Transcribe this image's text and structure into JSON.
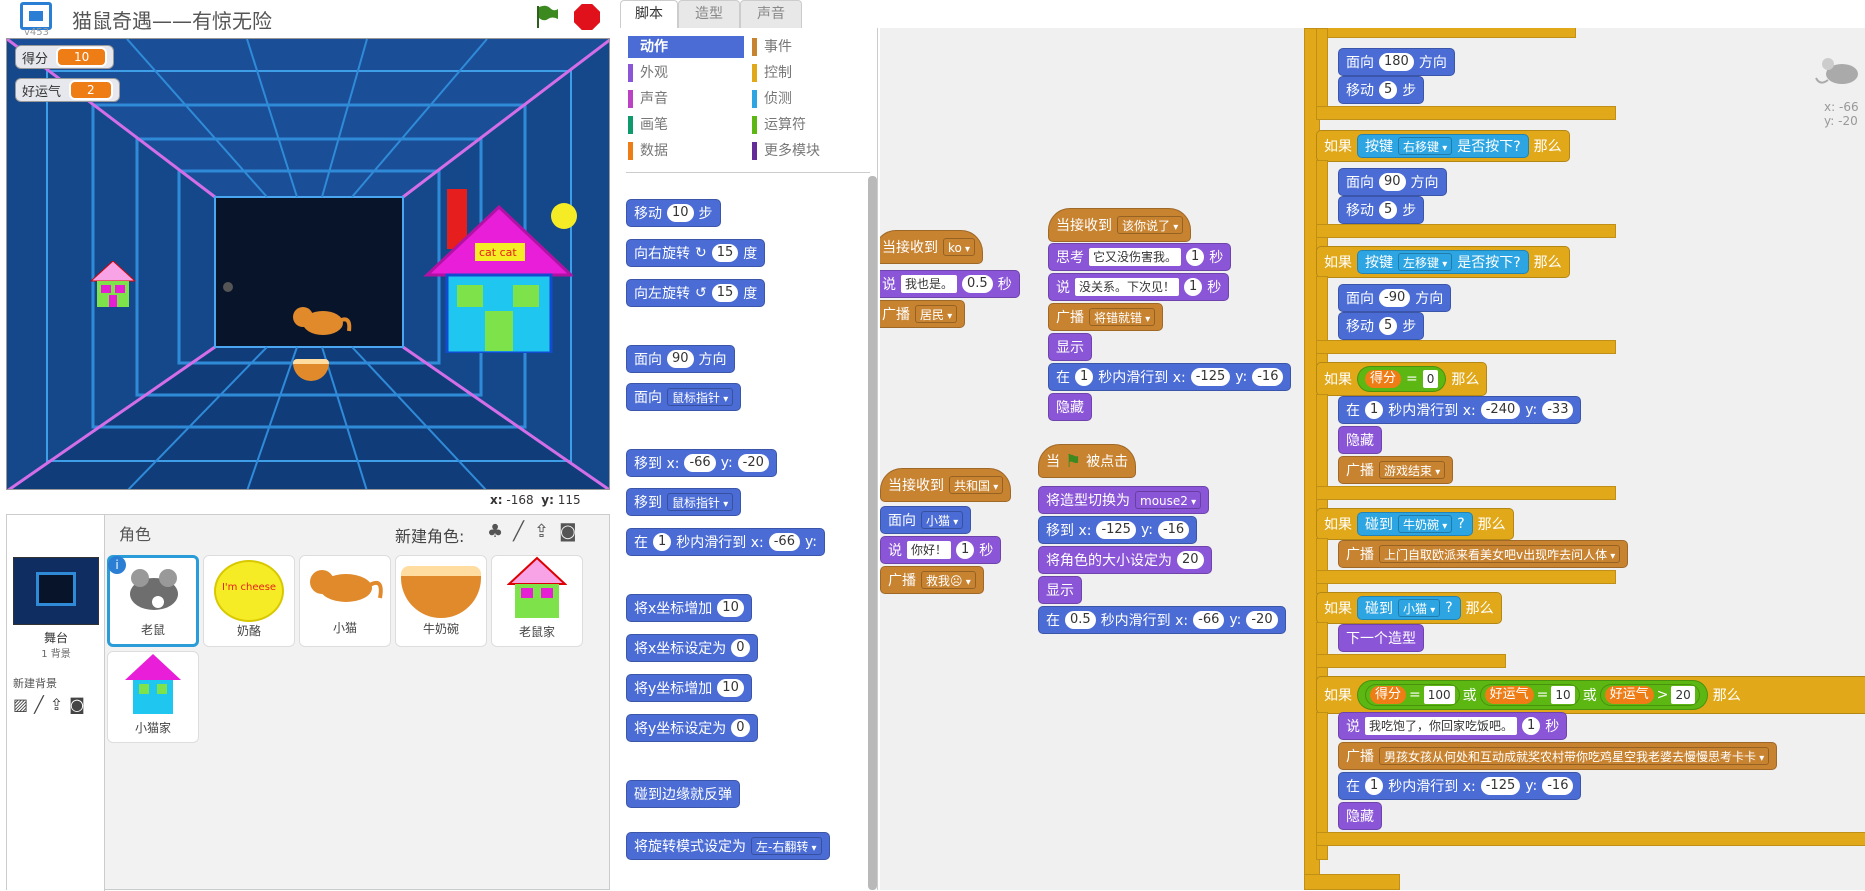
{
  "window": {
    "title": "猫鼠奇遇——有惊无险",
    "version": "v453"
  },
  "monitors": [
    {
      "label": "得分",
      "value": "10"
    },
    {
      "label": "好运气",
      "value": "2"
    }
  ],
  "stage_coords": {
    "x_label": "x:",
    "x": "-168",
    "y_label": "y:",
    "y": "115"
  },
  "sprites_panel": {
    "title": "角色",
    "new_sprite": "新建角色:",
    "stage_label": "舞台",
    "stage_sub": "1 背景",
    "new_backdrop": "新建背景",
    "sprites": [
      "老鼠",
      "奶酪",
      "小猫",
      "牛奶碗",
      "老鼠家",
      "小猫家"
    ]
  },
  "tabs": [
    "脚本",
    "造型",
    "声音"
  ],
  "categories": [
    {
      "name": "动作",
      "color": "#4a6cd4"
    },
    {
      "name": "事件",
      "color": "#c88330"
    },
    {
      "name": "外观",
      "color": "#8a55d7"
    },
    {
      "name": "控制",
      "color": "#e1a91a"
    },
    {
      "name": "声音",
      "color": "#bb42c3"
    },
    {
      "name": "侦测",
      "color": "#2ca5e2"
    },
    {
      "name": "画笔",
      "color": "#0e9a6c"
    },
    {
      "name": "运算符",
      "color": "#5cb712"
    },
    {
      "name": "数据",
      "color": "#ee7d16"
    },
    {
      "name": "更多模块",
      "color": "#632d99"
    }
  ],
  "palette": {
    "move": "移动",
    "move_n": "10",
    "steps": "步",
    "turn_r": "向右旋转",
    "turn_n": "15",
    "deg": "度",
    "turn_l": "向左旋转",
    "point_dir": "面向",
    "dir_val": "90",
    "dir_suffix": "方向",
    "point_to": "面向",
    "mouse": "鼠标指针",
    "goto_xy": "移到 x:",
    "gx": "-66",
    "gy_label": "y:",
    "gy": "-20",
    "goto": "移到",
    "glide": "在",
    "glide_t": "1",
    "glide_mid": "秒内滑行到 x:",
    "glide_x": "-66",
    "glide_y_label": "y:",
    "chx": "将x坐标增加",
    "chx_n": "10",
    "setx": "将x坐标设定为",
    "setx_n": "0",
    "chy": "将y坐标增加",
    "chy_n": "10",
    "sety": "将y坐标设定为",
    "sety_n": "0",
    "bounce": "碰到边缘就反弹",
    "rot": "将旋转模式设定为",
    "rot_v": "左-右翻转"
  },
  "scripts": {
    "s1": {
      "hat": "当接收到",
      "msg": "ko",
      "say": "说",
      "say_v": "我也是。",
      "say_t": "0.5",
      "sec": "秒",
      "bc": "广播",
      "bc_v": "居民"
    },
    "s2": {
      "hat": "当接收到",
      "msg": "共和国",
      "face": "面向",
      "face_v": "小猫",
      "say": "说",
      "say_v": "你好！",
      "say_t": "1",
      "sec": "秒",
      "bc": "广播",
      "bc_v": "救我☹"
    },
    "s3": {
      "hat": "当接收到",
      "msg": "该你说了",
      "think": "思考",
      "think_v": "它又没伤害我。",
      "t1": "1",
      "sec": "秒",
      "say": "说",
      "say_v": "没关系。下次见！",
      "t2": "1",
      "bc": "广播",
      "bc_v": "将错就错",
      "show": "显示",
      "glide": "在",
      "g_t": "1",
      "g_mid": "秒内滑行到 x:",
      "gx": "-125",
      "gy_label": "y:",
      "gy": "-16",
      "hide": "隐藏"
    },
    "s4": {
      "hat": "当",
      "clicked": "被点击",
      "costume": "将造型切换为",
      "costume_v": "mouse2",
      "goto": "移到 x:",
      "gx": "-125",
      "gy_label": "y:",
      "gy": "-16",
      "size": "将角色的大小设定为",
      "size_v": "20",
      "show": "显示",
      "glide": "在",
      "g_t": "0.5",
      "g_mid": "秒内滑行到 x:",
      "g_x": "-66",
      "g_y": "-20"
    },
    "s5": {
      "if": "如果",
      "then": "那么",
      "key": "按键",
      "pressed": "是否按下?",
      "face": "面向",
      "dir": "方向",
      "move": "移动",
      "steps": "步",
      "d180": "180",
      "n5": "5",
      "right": "右移键",
      "d90": "90",
      "left": "左移键",
      "dm90": "-90",
      "score": "得分",
      "eq": "=",
      "zero": "0",
      "glide": "在",
      "one": "1",
      "gmid": "秒内滑行到 x:",
      "x240": "-240",
      "ylabel": "y:",
      "y33": "-33",
      "hide": "隐藏",
      "bc": "广播",
      "gameover": "游戏结束",
      "touch": "碰到",
      "milk": "牛奶碗",
      "q": "?",
      "bc2": "上门自取欧派来看美女吧v出现咋去问人体",
      "cat": "小猫",
      "next": "下一个造型",
      "n100": "100",
      "or": "或",
      "luck": "好运气",
      "n10": "10",
      "gt": ">",
      "n20": "20",
      "say": "说",
      "say_v": "我吃饱了，你回家吃饭吧。",
      "sec": "秒",
      "bc3": "男孩女孩从何处和互动成就奖农村带你吃鸡星空我老婆去慢慢思考卡卡",
      "x125": "-125",
      "y16": "-16"
    }
  },
  "sprite_info": {
    "x_label": "x:",
    "x": "-66",
    "y_label": "y:",
    "y": "-20"
  }
}
